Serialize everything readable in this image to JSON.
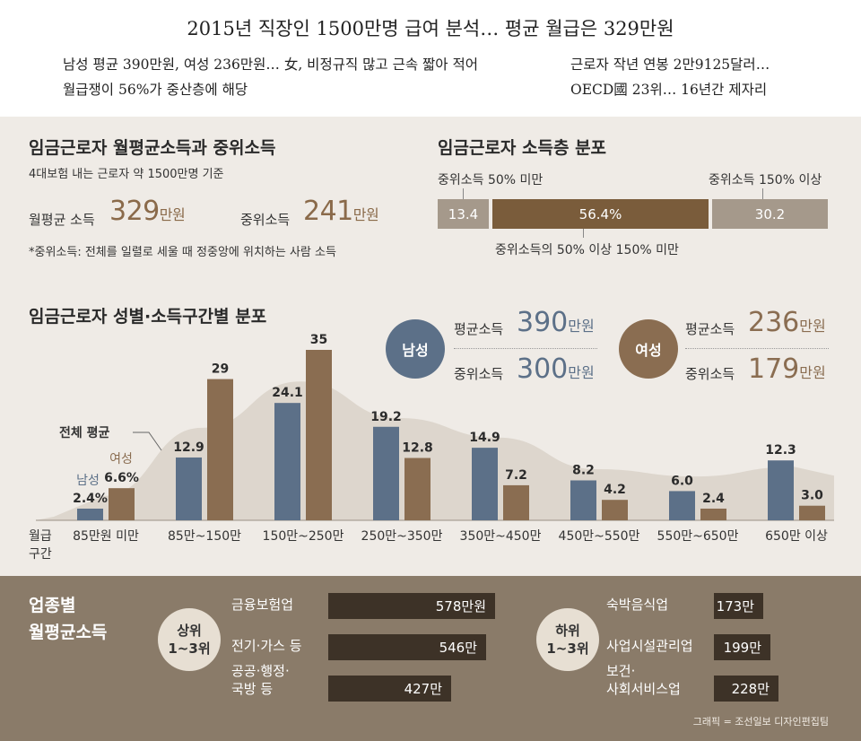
{
  "header": {
    "headline": "2015년 직장인 1500만명 급여 분석… 평균 월급은 329만원",
    "sub_left_1": "남성 평균 390만원, 여성 236만원… 女, 비정규직 많고 근속 짧아 적어",
    "sub_left_2": "월급쟁이 56%가 중산층에 해당",
    "sub_right_1": "근로자 작년 연봉 2만9125달러…",
    "sub_right_2": "OECD國 23위… 16년간 제자리"
  },
  "income_section": {
    "title": "임금근로자 월평균소득과 중위소득",
    "subtitle": "4대보험 내는 근로자 약 1500만명 기준",
    "avg_label": "월평균 소득",
    "avg_value": "329",
    "avg_unit": "만원",
    "median_label": "중위소득",
    "median_value": "241",
    "median_unit": "만원",
    "note": "*중위소득: 전체를 일렬로 세울 때 정중앙에 위치하는 사람 소득"
  },
  "class_section": {
    "title": "임금근로자 소득층 분포",
    "label_low": "중위소득 50% 미만",
    "label_high": "중위소득 150% 이상",
    "label_mid": "중위소득의 50% 이상 150% 미만",
    "segments": [
      {
        "text": "13.4",
        "value": 13.4,
        "color": "#a5998b"
      },
      {
        "text": "56.4%",
        "value": 56.4,
        "color": "#7a5c3b"
      },
      {
        "text": "30.2",
        "value": 30.2,
        "color": "#a5998b"
      }
    ]
  },
  "gender_section": {
    "title": "임금근로자 성별·소득구간별 분포",
    "male": {
      "label": "남성",
      "avg_label": "평균소득",
      "avg_value": "390",
      "median_label": "중위소득",
      "median_value": "300",
      "unit": "만원",
      "color": "#5c7088"
    },
    "female": {
      "label": "여성",
      "avg_label": "평균소득",
      "avg_value": "236",
      "median_label": "중위소득",
      "median_value": "179",
      "unit": "만원",
      "color": "#8a6d51"
    }
  },
  "chart_data": {
    "type": "bar",
    "title": "임금근로자 성별·소득구간별 분포",
    "xlabel": "월급 구간",
    "ylabel": "",
    "categories": [
      "85만원 미만",
      "85만~150만",
      "150만~250만",
      "250만~350만",
      "350만~450만",
      "450만~550만",
      "550만~650만",
      "650만 이상"
    ],
    "series": [
      {
        "name": "남성",
        "values": [
          2.4,
          12.9,
          24.1,
          19.2,
          14.9,
          8.2,
          6.0,
          12.3
        ],
        "labels": [
          "2.4%",
          "12.9",
          "24.1",
          "19.2",
          "14.9",
          "8.2",
          "6.0",
          "12.3"
        ],
        "color": "#5c7088"
      },
      {
        "name": "여성",
        "values": [
          6.6,
          29,
          35,
          12.8,
          7.2,
          4.2,
          2.4,
          3.0
        ],
        "labels": [
          "6.6%",
          "29",
          "35",
          "12.8",
          "7.2",
          "4.2",
          "2.4",
          "3.0"
        ],
        "color": "#8a6d51"
      }
    ],
    "area_series": {
      "name": "전체 평균",
      "values": [
        5,
        19,
        28.5,
        21,
        17,
        10.5,
        9,
        11
      ],
      "color": "#d9d2c8"
    },
    "axis_label_line1": "월급",
    "axis_label_line2": "구간",
    "ylim": [
      0,
      38
    ]
  },
  "industry_section": {
    "title_line1": "업종별",
    "title_line2": "월평균소득",
    "top_label_1": "상위",
    "top_label_2": "1~3위",
    "bottom_label_1": "하위",
    "bottom_label_2": "1~3위",
    "top": [
      {
        "name": "금융보험업",
        "value": 578,
        "text": "578만원"
      },
      {
        "name": "전기·가스 등",
        "value": 546,
        "text": "546만"
      },
      {
        "name": "공공·행정·\n국방 등",
        "value": 427,
        "text": "427만"
      }
    ],
    "bottom": [
      {
        "name": "숙박음식업",
        "value": 173,
        "text": "173만"
      },
      {
        "name": "사업시설관리업",
        "value": 199,
        "text": "199만"
      },
      {
        "name": "보건·\n사회서비스업",
        "value": 228,
        "text": "228만"
      }
    ],
    "credit": "그래픽 = 조선일보 디자인편집팀"
  }
}
